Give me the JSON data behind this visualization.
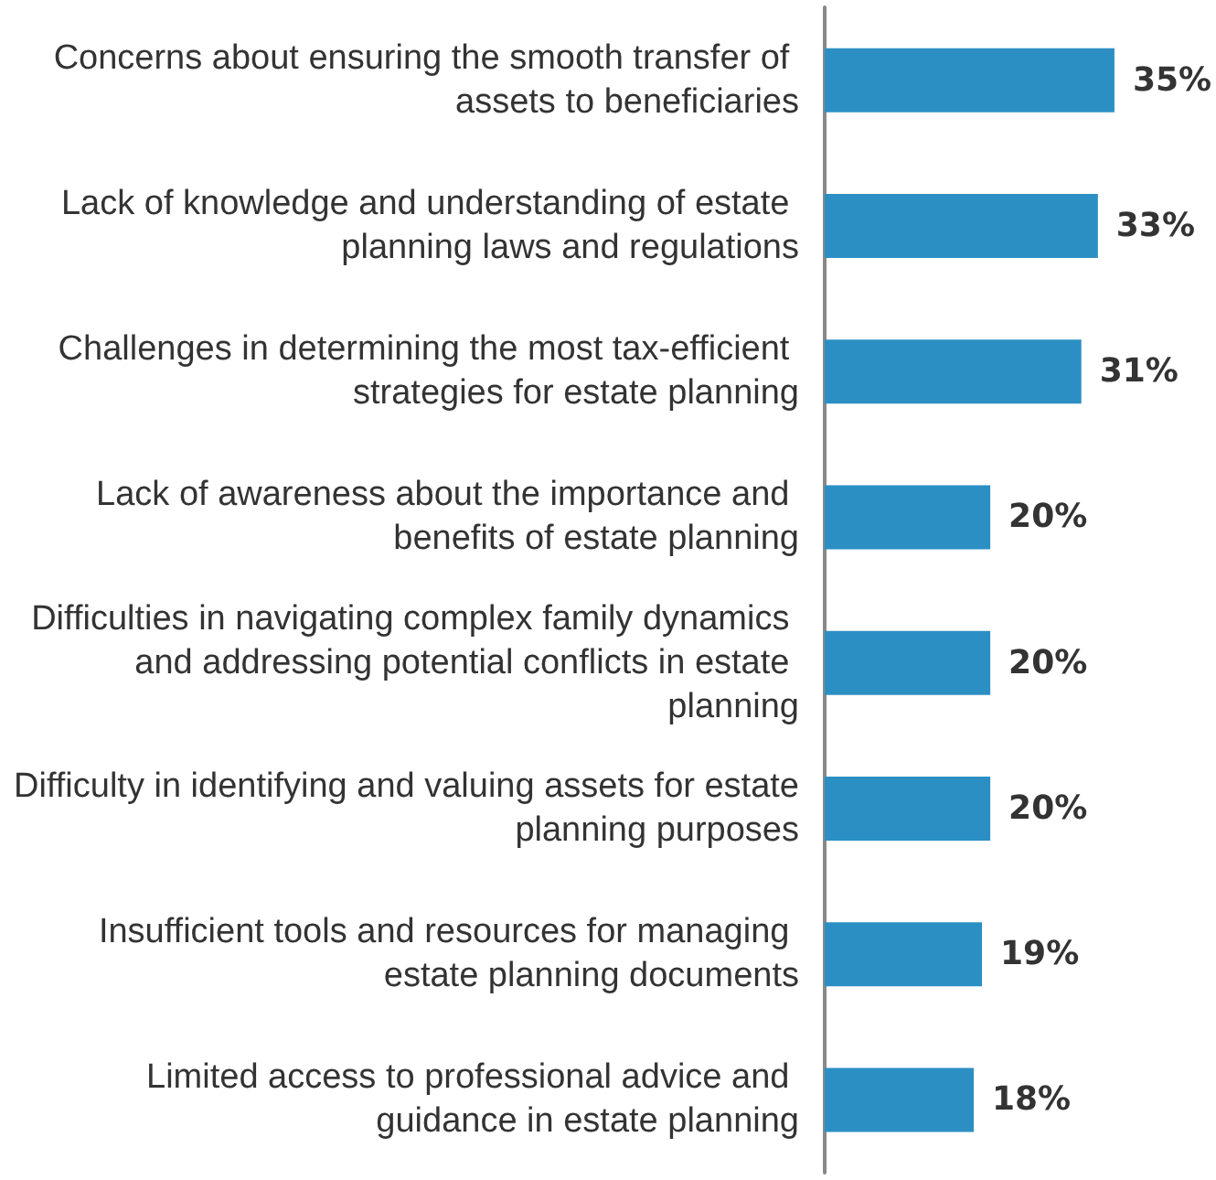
{
  "chart_data": {
    "type": "bar",
    "orientation": "horizontal",
    "categories": [
      "Concerns about ensuring the smooth transfer of assets to beneficiaries",
      "Lack of knowledge and understanding of estate planning laws and regulations",
      "Challenges in determining the most tax-efficient strategies for estate planning",
      "Lack of awareness about the importance and benefits of estate planning",
      "Difficulties in navigating complex family dynamics and addressing potential conflicts in estate planning",
      "Difficulty in identifying and valuing assets for estate planning purposes",
      "Insufficient tools and resources for managing estate planning documents",
      "Limited access to professional advice and guidance in estate planning"
    ],
    "values": [
      35,
      33,
      31,
      20,
      20,
      20,
      19,
      18
    ],
    "value_labels": [
      "35%",
      "33%",
      "31%",
      "20%",
      "20%",
      "20%",
      "19%",
      "18%"
    ],
    "color": "#2b8fc4"
  }
}
